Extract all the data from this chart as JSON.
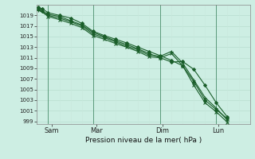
{
  "xlabel": "Pression niveau de la mer( hPa )",
  "bg_color": "#cdeee3",
  "grid_color_h": "#b8ddd0",
  "grid_color_v": "#c8e8dc",
  "line_color": "#1a5e2a",
  "border_color": "#5a9a7a",
  "ylim": [
    998.5,
    1021.0
  ],
  "yticks": [
    999,
    1001,
    1003,
    1005,
    1007,
    1009,
    1011,
    1013,
    1015,
    1017,
    1019
  ],
  "xlim": [
    0.0,
    9.5
  ],
  "day_positions": [
    0.65,
    2.65,
    5.6,
    8.1
  ],
  "day_labels": [
    "Sam",
    "Mar",
    "Dim",
    "Lun"
  ],
  "day_vlines": [
    0.5,
    2.5,
    5.5,
    8.0
  ],
  "lines": [
    {
      "x": [
        0.05,
        0.25,
        0.5,
        1.0,
        1.5,
        2.0,
        2.5,
        3.0,
        3.5,
        4.0,
        4.5,
        5.0,
        5.5,
        6.0,
        6.5,
        7.0,
        7.5,
        8.0,
        8.5
      ],
      "y": [
        1020.5,
        1020.2,
        1019.5,
        1019.0,
        1018.5,
        1017.5,
        1016.0,
        1015.2,
        1014.5,
        1013.8,
        1013.0,
        1012.2,
        1011.4,
        1010.5,
        1009.5,
        1006.5,
        1003.0,
        1001.2,
        999.5
      ],
      "marker": "D",
      "ms": 2.0,
      "lw": 0.8
    },
    {
      "x": [
        0.05,
        0.25,
        0.5,
        1.0,
        1.5,
        2.0,
        2.5,
        3.0,
        3.5,
        4.0,
        4.5,
        5.0,
        5.5,
        6.0,
        6.5,
        7.0,
        7.5,
        8.0,
        8.5
      ],
      "y": [
        1020.3,
        1019.8,
        1019.2,
        1018.8,
        1018.0,
        1017.2,
        1015.8,
        1015.0,
        1014.2,
        1013.5,
        1012.7,
        1011.8,
        1011.0,
        1010.2,
        1010.3,
        1008.8,
        1005.8,
        1002.5,
        999.8
      ],
      "marker": "D",
      "ms": 2.0,
      "lw": 0.8
    },
    {
      "x": [
        0.05,
        0.5,
        1.0,
        1.5,
        2.0,
        2.5,
        3.0,
        3.5,
        4.0,
        4.5,
        5.0,
        5.5,
        6.0,
        6.5,
        7.0,
        7.5,
        8.0,
        8.5
      ],
      "y": [
        1020.0,
        1019.0,
        1018.5,
        1017.8,
        1017.0,
        1015.5,
        1014.8,
        1014.0,
        1013.2,
        1012.5,
        1011.5,
        1011.3,
        1012.2,
        1010.0,
        1006.8,
        1003.5,
        1001.5,
        999.2
      ],
      "marker": "+",
      "ms": 3.5,
      "lw": 0.8
    },
    {
      "x": [
        0.05,
        0.5,
        1.0,
        1.5,
        2.0,
        2.5,
        3.0,
        3.5,
        4.0,
        4.5,
        5.0,
        5.5,
        6.0,
        6.5,
        7.0,
        7.5,
        8.0,
        8.5
      ],
      "y": [
        1020.2,
        1018.8,
        1018.2,
        1017.5,
        1016.7,
        1015.2,
        1014.5,
        1013.7,
        1013.0,
        1012.2,
        1011.2,
        1011.0,
        1011.8,
        1009.5,
        1005.8,
        1002.5,
        1000.8,
        998.8
      ],
      "marker": "x",
      "ms": 3.5,
      "lw": 0.8
    }
  ]
}
